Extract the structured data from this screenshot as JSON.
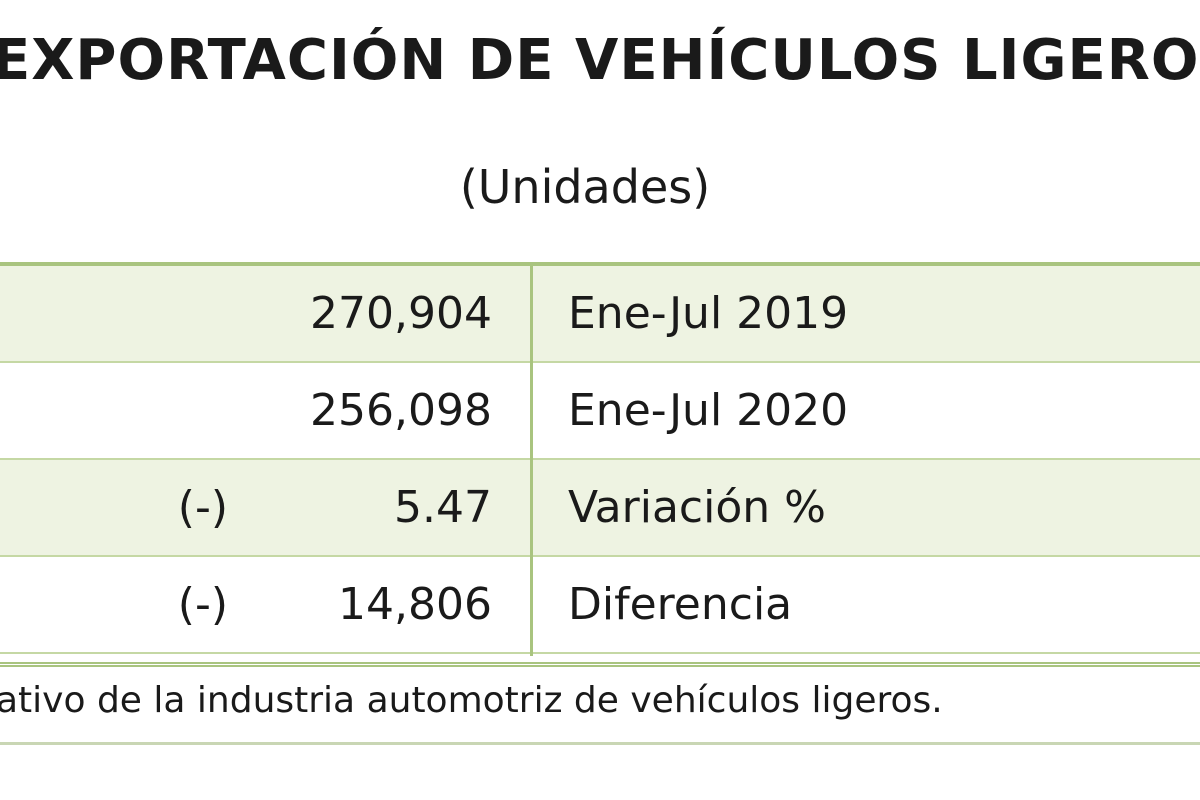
{
  "header": {
    "title": "EXPORTACIÓN DE VEHÍCULOS LIGEROS",
    "subtitle": "(Unidades)"
  },
  "table": {
    "rows": [
      {
        "value": "270,904",
        "label": "Ene-Jul 2019"
      },
      {
        "value": "256,098",
        "label": "Ene-Jul 2020"
      },
      {
        "sign": "(-)",
        "value": "5.47",
        "label": "Variación %"
      },
      {
        "sign": "(-)",
        "value": "14,806",
        "label": "Diferencia"
      }
    ]
  },
  "footnote": "ativo de la industria automotriz de vehículos ligeros."
}
